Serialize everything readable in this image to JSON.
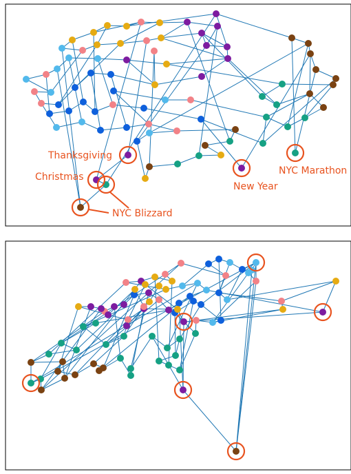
{
  "colors": {
    "edge": "#1f77b4",
    "annotation": "#e8531f",
    "node_palette": [
      "#52b9ec",
      "#f28287",
      "#e6ab13",
      "#7d1ca0",
      "#0e60dc",
      "#16a184",
      "#7a4212"
    ]
  },
  "panels": [
    {
      "id": "top",
      "annotations": [
        {
          "label": "Thanksgiving"
        },
        {
          "label": "Christmas"
        },
        {
          "label": "NYC Blizzard"
        },
        {
          "label": "New Year"
        },
        {
          "label": "NYC Marathon"
        }
      ]
    },
    {
      "id": "bottom",
      "annotations": []
    }
  ]
}
